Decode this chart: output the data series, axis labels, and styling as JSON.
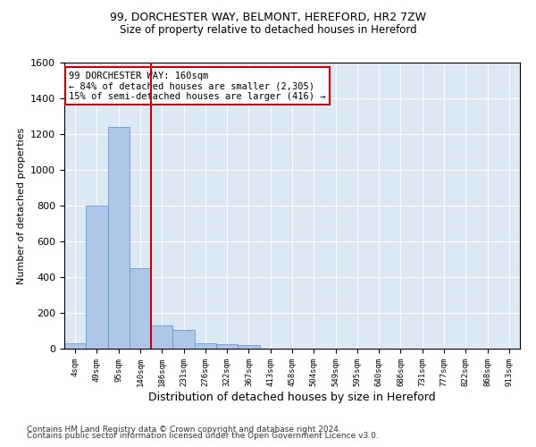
{
  "title_line1": "99, DORCHESTER WAY, BELMONT, HEREFORD, HR2 7ZW",
  "title_line2": "Size of property relative to detached houses in Hereford",
  "xlabel": "Distribution of detached houses by size in Hereford",
  "ylabel": "Number of detached properties",
  "footer_line1": "Contains HM Land Registry data © Crown copyright and database right 2024.",
  "footer_line2": "Contains public sector information licensed under the Open Government Licence v3.0.",
  "annotation_line1": "99 DORCHESTER WAY: 160sqm",
  "annotation_line2": "← 84% of detached houses are smaller (2,305)",
  "annotation_line3": "15% of semi-detached houses are larger (416) →",
  "bar_color": "#aec6e8",
  "bar_edge_color": "#5a8fc2",
  "background_color": "#dce9f5",
  "vline_color": "#cc0000",
  "vline_x": 3.5,
  "categories": [
    "4sqm",
    "49sqm",
    "95sqm",
    "140sqm",
    "186sqm",
    "231sqm",
    "276sqm",
    "322sqm",
    "367sqm",
    "413sqm",
    "458sqm",
    "504sqm",
    "549sqm",
    "595sqm",
    "640sqm",
    "686sqm",
    "731sqm",
    "777sqm",
    "822sqm",
    "868sqm",
    "913sqm"
  ],
  "values": [
    30,
    800,
    1240,
    450,
    130,
    105,
    30,
    25,
    20,
    0,
    0,
    0,
    0,
    0,
    0,
    0,
    0,
    0,
    0,
    0,
    0
  ],
  "ylim": [
    0,
    1600
  ],
  "yticks": [
    0,
    200,
    400,
    600,
    800,
    1000,
    1200,
    1400,
    1600
  ],
  "grid_color": "#ffffff",
  "annotation_box_color": "#cc0000",
  "annotation_box_facecolor": "#ffffff"
}
